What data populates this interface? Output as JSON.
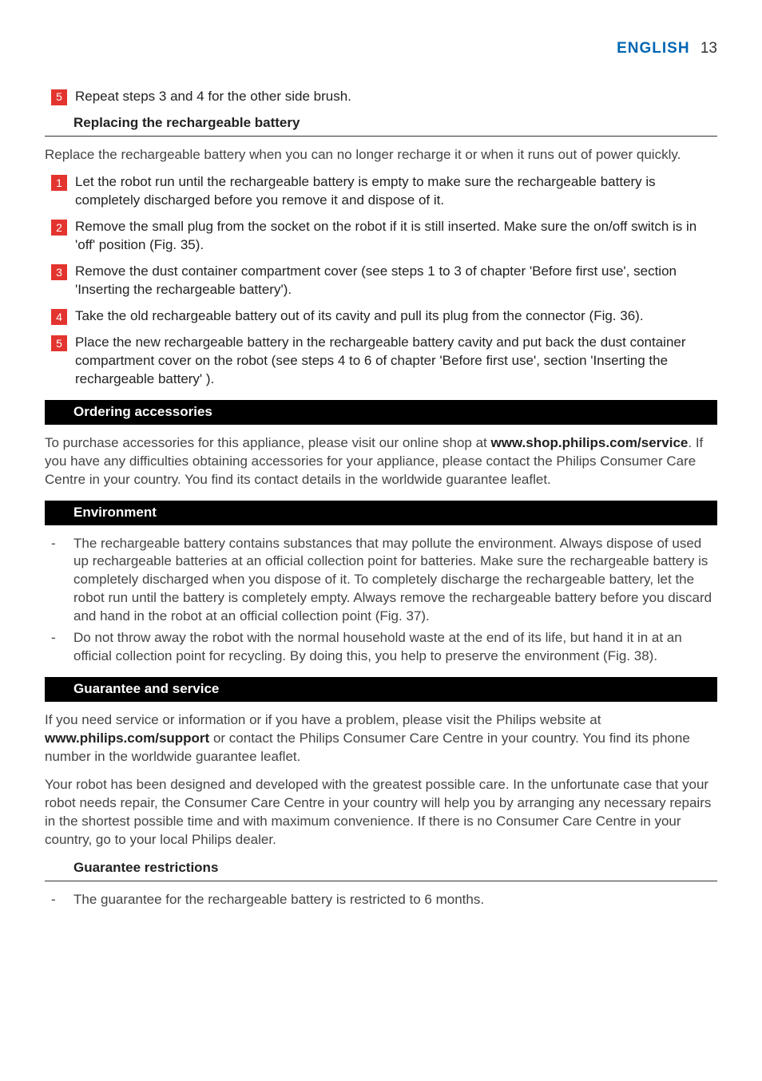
{
  "header": {
    "language": "ENGLISH",
    "page_number": "13"
  },
  "step5_intro": {
    "num": "5",
    "text": "Repeat steps 3 and 4 for the other side brush."
  },
  "section_replace": {
    "title": "Replacing the rechargeable battery",
    "intro": "Replace the rechargeable battery when you can no longer recharge it or when it runs out of power quickly.",
    "steps": [
      {
        "num": "1",
        "text": "Let the robot run until the rechargeable battery is empty to make sure the rechargeable battery is completely discharged before you remove it and dispose of it."
      },
      {
        "num": "2",
        "text": "Remove the small plug from the socket on the robot if it is still inserted. Make sure the on/off switch is in 'off' position (Fig. 35)."
      },
      {
        "num": "3",
        "text": "Remove the dust container compartment cover (see steps 1 to 3 of chapter 'Before first use', section 'Inserting the rechargeable battery')."
      },
      {
        "num": "4",
        "text": "Take the old rechargeable battery out of its cavity and pull its plug from the connector (Fig. 36)."
      },
      {
        "num": "5",
        "text": "Place the new rechargeable battery in the rechargeable battery cavity and put back the dust container compartment cover on the robot (see steps 4 to 6 of chapter 'Before first use', section 'Inserting the rechargeable battery' )."
      }
    ]
  },
  "section_ordering": {
    "title": "Ordering accessories",
    "para_pre": "To purchase accessories for this appliance, please visit our online shop at ",
    "para_bold": "www.shop.philips.com/service",
    "para_post": ". If you have any difficulties obtaining accessories for your appliance, please contact the Philips Consumer Care Centre in your country. You find its contact details in the worldwide guarantee leaflet."
  },
  "section_env": {
    "title": "Environment",
    "bullets": [
      "The rechargeable battery contains substances that may pollute the environment. Always dispose of used up rechargeable batteries at an official collection point for batteries. Make sure the rechargeable battery is completely discharged when you dispose of it. To completely discharge the rechargeable battery, let the robot run until the battery is completely empty. Always remove the rechargeable battery before you discard and hand in the robot at an official collection point (Fig. 37).",
      "Do not throw away the robot with the normal household waste at the end of its life, but hand it in at an official collection point for recycling. By doing this, you help to preserve the environment (Fig. 38)."
    ]
  },
  "section_guarantee": {
    "title": "Guarantee and service",
    "p1_pre": "If you need service or information or if you have a problem, please visit the Philips website at ",
    "p1_bold": "www.philips.com/support",
    "p1_post": " or contact the Philips Consumer Care Centre in your country. You find its phone number in the worldwide guarantee leaflet.",
    "p2": "Your robot has been designed and developed with the greatest possible care. In the unfortunate case that your robot needs repair, the Consumer Care Centre in your country will help you by arranging any necessary repairs in the shortest possible time and with maximum convenience. If there is no Consumer Care Centre in your country, go to your local Philips dealer."
  },
  "section_restrict": {
    "title": "Guarantee restrictions",
    "bullets": [
      "The guarantee for the rechargeable battery is restricted to 6 months."
    ]
  },
  "colors": {
    "brand_blue": "#0066b3",
    "badge_red": "#e3342f",
    "bar_bg": "#000000",
    "text": "#222222",
    "body_text": "#444444"
  }
}
